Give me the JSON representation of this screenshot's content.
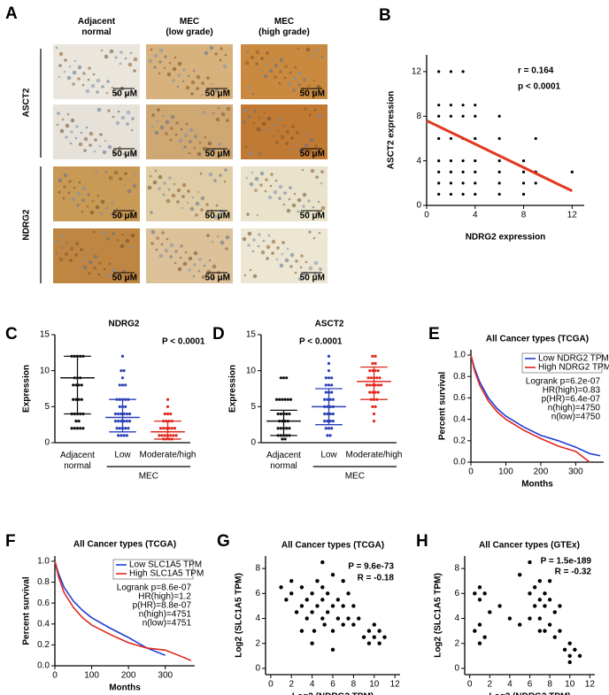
{
  "figure_a": {
    "letter": "A",
    "columns": [
      "Adjacent\nnormal",
      "MEC\n(low grade)",
      "MEC\n(high grade)"
    ],
    "rows": [
      "ASCT2",
      "NDRG2"
    ],
    "scale_bar": "50 μM"
  },
  "chart_data": [
    {
      "type": "scatter",
      "panel": "B",
      "x_label": "NDRG2 expression",
      "y_label": "ASCT2 expression",
      "annotations": [
        "r = 0.164",
        "p < 0.0001"
      ],
      "xlim": [
        0,
        13
      ],
      "ylim": [
        0,
        13.5
      ],
      "xticks": [
        0,
        4,
        8,
        12
      ],
      "yticks": [
        0,
        4,
        8,
        12
      ],
      "series": [
        {
          "color": "#000000",
          "x": [
            1,
            1,
            1,
            1,
            1,
            1,
            1,
            1,
            2,
            2,
            2,
            2,
            2,
            2,
            2,
            2,
            3,
            3,
            3,
            3,
            3,
            3,
            3,
            3,
            4,
            4,
            4,
            4,
            4,
            4,
            4,
            6,
            6,
            6,
            6,
            6,
            6,
            8,
            8,
            8,
            8,
            9,
            9,
            9,
            12
          ],
          "y": [
            1,
            2,
            3,
            4,
            6,
            8,
            9,
            12,
            1,
            2,
            3,
            4,
            6,
            8,
            9,
            12,
            1,
            2,
            3,
            4,
            6,
            8,
            9,
            12,
            1,
            2,
            3,
            4,
            6,
            8,
            9,
            1,
            2,
            3,
            4,
            6,
            8,
            1,
            2,
            3,
            4,
            2,
            3,
            6,
            3
          ]
        },
        {
          "color": "#e2381e",
          "line": true,
          "x": [
            0,
            12
          ],
          "y": [
            7.6,
            1.3
          ]
        }
      ]
    },
    {
      "type": "dot_plot",
      "panel": "C",
      "title": "NDRG2",
      "y_label": "Expression",
      "annotations": [
        "P < 0.0001"
      ],
      "categories": [
        "Adjacent\nnormal",
        "Low",
        "Moderate/high"
      ],
      "group_label": "MEC",
      "ylim": [
        0,
        15
      ],
      "yticks": [
        0,
        5,
        10,
        15
      ],
      "groups": [
        {
          "color": "#111111",
          "center": 9,
          "upper": 12,
          "lower": 4,
          "values": [
            12,
            12,
            12,
            12,
            12,
            9,
            9,
            9,
            8,
            8,
            8,
            8,
            6,
            6,
            6,
            6,
            4,
            4,
            4,
            4,
            4,
            3,
            3,
            2,
            2,
            2,
            2,
            2
          ]
        },
        {
          "color": "#2a3fb8",
          "center": 3.5,
          "upper": 6,
          "lower": 1.5,
          "values": [
            12,
            10,
            10,
            9,
            8,
            8,
            8,
            6,
            6,
            6,
            6,
            6,
            5,
            5,
            5,
            4,
            4,
            4,
            4,
            4,
            4,
            3,
            3,
            3,
            3,
            3,
            3,
            2,
            2,
            2,
            2,
            2,
            1,
            1,
            1,
            1
          ]
        },
        {
          "color": "#e0281e",
          "center": 1.5,
          "upper": 3,
          "lower": 0.5,
          "values": [
            6,
            5,
            4,
            4,
            4,
            3,
            3,
            3,
            3,
            2,
            2,
            2,
            2,
            2,
            2,
            1,
            1,
            1,
            1,
            1,
            1,
            1,
            0.5,
            0.5,
            0.5,
            0.5
          ]
        }
      ]
    },
    {
      "type": "dot_plot",
      "panel": "D",
      "title": "ASCT2",
      "y_label": "Expression",
      "annotations": [
        "P < 0.0001"
      ],
      "categories": [
        "Adjacent\nnormal",
        "Low",
        "Moderate/high"
      ],
      "group_label": "MEC",
      "ylim": [
        0,
        15
      ],
      "yticks": [
        0,
        5,
        10,
        15
      ],
      "groups": [
        {
          "color": "#111111",
          "center": 3,
          "upper": 4.5,
          "lower": 1,
          "values": [
            9,
            9,
            9,
            6,
            6,
            6,
            6,
            6,
            6,
            4,
            4,
            4,
            4,
            4,
            3,
            3,
            3,
            3,
            2,
            2,
            2,
            2,
            2,
            1,
            1,
            1,
            1,
            1,
            0.5,
            0.5
          ]
        },
        {
          "color": "#2a3fb8",
          "center": 5,
          "upper": 7.5,
          "lower": 2.5,
          "values": [
            12,
            11,
            10,
            9,
            9,
            9,
            8,
            8,
            8,
            7,
            7,
            7,
            6,
            6,
            6,
            6,
            5,
            5,
            5,
            5,
            4,
            4,
            4,
            4,
            3,
            3,
            3,
            3,
            2,
            2,
            2,
            1,
            1
          ]
        },
        {
          "color": "#e0281e",
          "center": 8.5,
          "upper": 10.5,
          "lower": 6,
          "values": [
            12,
            12,
            11,
            11,
            10,
            10,
            10,
            10,
            9,
            9,
            9,
            9,
            9,
            8,
            8,
            8,
            8,
            8,
            8,
            7,
            7,
            7,
            7,
            6,
            6,
            6,
            5,
            5,
            4,
            3
          ]
        }
      ]
    },
    {
      "type": "survival",
      "panel": "E",
      "title": "All Cancer types (TCGA)",
      "x_label": "Months",
      "y_label": "Percent survival",
      "stats": [
        "Logrank p=6.2e-07",
        "HR(high)=0.83",
        "p(HR)=6.4e-07",
        "n(high)=4750",
        "n(low)=4750"
      ],
      "xlim": [
        0,
        380
      ],
      "xticks": [
        0,
        100,
        200,
        300
      ],
      "ylim": [
        0,
        1.05
      ],
      "yticks": [
        {
          "value": 0,
          "label": "0.0"
        },
        0.2,
        0.4,
        0.6,
        0.8,
        {
          "value": 1,
          "label": "1.0"
        }
      ],
      "series": [
        {
          "name": "Low NDRG2 TPM",
          "color": "#1f3fd6",
          "x": [
            0,
            10,
            25,
            50,
            75,
            100,
            150,
            200,
            250,
            300,
            340,
            370
          ],
          "y": [
            1,
            0.88,
            0.75,
            0.6,
            0.5,
            0.43,
            0.33,
            0.25,
            0.2,
            0.14,
            0.08,
            0.06
          ]
        },
        {
          "name": "High NDRG2 TPM",
          "color": "#e0281e",
          "x": [
            0,
            10,
            25,
            50,
            75,
            100,
            150,
            200,
            250,
            300,
            340
          ],
          "y": [
            1,
            0.86,
            0.72,
            0.57,
            0.47,
            0.4,
            0.3,
            0.22,
            0.15,
            0.1,
            0
          ]
        }
      ]
    },
    {
      "type": "survival",
      "panel": "F",
      "title": "All Cancer types (TCGA)",
      "x_label": "Months",
      "y_label": "Percent survival",
      "stats": [
        "Logrank p=8.6e-07",
        "HR(high)=1.2",
        "p(HR)=8.8e-07",
        "n(high)=4751",
        "n(low)=4751"
      ],
      "xlim": [
        0,
        380
      ],
      "xticks": [
        0,
        100,
        200,
        300
      ],
      "ylim": [
        0,
        1.05
      ],
      "yticks": [
        {
          "value": 0,
          "label": "0.0"
        },
        0.2,
        0.4,
        0.6,
        0.8,
        {
          "value": 1,
          "label": "1.0"
        }
      ],
      "series": [
        {
          "name": "Low SLC1A5 TPM",
          "color": "#1f3fd6",
          "x": [
            0,
            10,
            25,
            50,
            75,
            100,
            150,
            200,
            250,
            300
          ],
          "y": [
            1,
            0.88,
            0.75,
            0.62,
            0.53,
            0.46,
            0.36,
            0.27,
            0.17,
            0.1
          ]
        },
        {
          "name": "High SLC1A5 TPM",
          "color": "#e0281e",
          "x": [
            0,
            10,
            25,
            50,
            75,
            100,
            150,
            200,
            250,
            300,
            350,
            370
          ],
          "y": [
            1,
            0.85,
            0.7,
            0.56,
            0.46,
            0.39,
            0.3,
            0.22,
            0.17,
            0.15,
            0.08,
            0.05
          ]
        }
      ]
    },
    {
      "type": "scatter",
      "panel": "G",
      "title": "All Cancer types (TCGA)",
      "x_label": "Log2 (NDRG2 TPM)",
      "y_label": "Log2 (SLC1A5 TPM)",
      "annotations": [
        "P = 9.6e-73",
        "R = -0.18"
      ],
      "xlim": [
        -0.5,
        12.5
      ],
      "ylim": [
        -0.5,
        9
      ],
      "xticks": [
        0,
        2,
        4,
        6,
        8,
        10,
        12
      ],
      "yticks": [
        0,
        2,
        4,
        6,
        8
      ],
      "series": [
        {
          "color": "#000000",
          "x": [
            1,
            1.5,
            2,
            2.5,
            3,
            3,
            3.5,
            3.5,
            4,
            4,
            4.2,
            4.5,
            4.5,
            5,
            5,
            5,
            5.2,
            5.5,
            5.5,
            6,
            6,
            6,
            6.5,
            6.5,
            7,
            7,
            7.5,
            7.5,
            8,
            8,
            8.5,
            9,
            9.5,
            9.5,
            10,
            10,
            10.5,
            10.5,
            11,
            2,
            3,
            6,
            7,
            4,
            5
          ],
          "y": [
            6.5,
            5.5,
            6,
            4.5,
            5,
            6.5,
            4,
            5.5,
            4.5,
            6,
            3,
            5,
            7,
            4,
            5.5,
            6.5,
            3.5,
            4.5,
            6,
            3,
            5,
            7.5,
            4,
            5.5,
            3.5,
            5,
            4,
            6,
            3.5,
            5,
            4,
            2.5,
            3,
            2,
            2.5,
            3.5,
            2,
            3,
            2.5,
            7,
            3,
            1.5,
            7,
            2,
            8.5
          ]
        }
      ]
    },
    {
      "type": "scatter",
      "panel": "H",
      "title": "All Cancer types (GTEx)",
      "x_label": "Log2 (NDRG2 TPM)",
      "y_label": "Log2 (SLC1A5 TPM)",
      "annotations": [
        "P = 1.5e-189",
        "R = -0.32"
      ],
      "xlim": [
        -0.5,
        12.5
      ],
      "ylim": [
        -0.5,
        9
      ],
      "xticks": [
        0,
        2,
        4,
        6,
        8,
        10,
        12
      ],
      "yticks": [
        0,
        2,
        4,
        6,
        8
      ],
      "series": [
        {
          "color": "#000000",
          "x": [
            0.5,
            1,
            1,
            1.5,
            0.5,
            1,
            1.5,
            1,
            5,
            6,
            6.5,
            7,
            7,
            7.5,
            7.5,
            8,
            8,
            8.5,
            6,
            7,
            8,
            9,
            6.5,
            7.5,
            9.5,
            10,
            10,
            10.5,
            10,
            11,
            4,
            5,
            3,
            2,
            9,
            8.5,
            7,
            6
          ],
          "y": [
            6,
            6.5,
            5.5,
            6,
            3,
            3.5,
            2.5,
            2,
            7.5,
            6,
            5,
            7,
            4,
            6,
            5,
            5.5,
            7,
            4.5,
            4,
            5.5,
            3.5,
            5,
            6.5,
            3,
            1.5,
            2,
            1,
            1.5,
            0.5,
            1,
            4,
            3.5,
            5,
            4.5,
            3,
            2.5,
            3,
            8.5
          ]
        }
      ]
    }
  ]
}
